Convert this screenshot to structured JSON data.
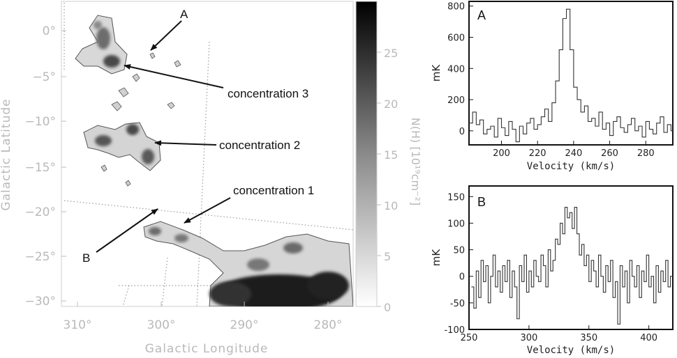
{
  "map": {
    "xlabel": "Galactic Longitude",
    "ylabel": "Galactic Latitude",
    "xticks": [
      "310°",
      "300°",
      "290°",
      "280°"
    ],
    "yticks": [
      "0°",
      "−5°",
      "−10°",
      "−15°",
      "−20°",
      "−25°",
      "−30°"
    ],
    "colorbar_label": "N(H) [10¹⁹cm⁻²]",
    "colorbar_ticks": [
      "0",
      "5",
      "10",
      "15",
      "20",
      "25"
    ],
    "colorbar_range": [
      0,
      30
    ],
    "annotations": {
      "a": "A",
      "b": "B",
      "c1": "concentration 1",
      "c2": "concentration 2",
      "c3": "concentration 3"
    }
  },
  "chart_data": [
    {
      "type": "line",
      "panel": "A",
      "xlabel": "Velocity (km/s)",
      "ylabel": "mK",
      "xlim": [
        182,
        295
      ],
      "ylim": [
        -90,
        830
      ],
      "xticks": [
        200,
        220,
        240,
        260,
        280
      ],
      "yticks": [
        0,
        200,
        400,
        600,
        800
      ],
      "series": [
        {
          "x": [
            182,
            184,
            186,
            188,
            190,
            192,
            194,
            196,
            198,
            200,
            202,
            204,
            206,
            208,
            210,
            212,
            214,
            216,
            218,
            220,
            222,
            224,
            226,
            228,
            230,
            232,
            234,
            236,
            238,
            240,
            242,
            244,
            246,
            248,
            250,
            252,
            254,
            256,
            258,
            260,
            262,
            264,
            266,
            268,
            270,
            272,
            274,
            276,
            278,
            280,
            282,
            284,
            286,
            288,
            290,
            292,
            294
          ],
          "y": [
            50,
            120,
            40,
            70,
            -20,
            10,
            30,
            -40,
            80,
            20,
            -30,
            60,
            10,
            -70,
            30,
            -20,
            50,
            80,
            10,
            40,
            90,
            140,
            60,
            180,
            320,
            520,
            720,
            780,
            520,
            280,
            200,
            120,
            160,
            60,
            80,
            30,
            120,
            10,
            50,
            -30,
            60,
            90,
            20,
            -10,
            40,
            80,
            0,
            30,
            -40,
            60,
            10,
            -20,
            50,
            90,
            -10,
            40,
            0
          ]
        }
      ]
    },
    {
      "type": "line",
      "panel": "B",
      "xlabel": "Velocity (km/s)",
      "ylabel": "mK",
      "xlim": [
        250,
        420
      ],
      "ylim": [
        -100,
        170
      ],
      "xticks": [
        250,
        300,
        350,
        400
      ],
      "yticks": [
        -100,
        -50,
        0,
        50,
        100,
        150
      ],
      "series": [
        {
          "x": [
            252,
            254,
            256,
            258,
            260,
            262,
            264,
            266,
            268,
            270,
            272,
            274,
            276,
            278,
            280,
            282,
            284,
            286,
            288,
            290,
            292,
            294,
            296,
            298,
            300,
            302,
            304,
            306,
            308,
            310,
            312,
            314,
            316,
            318,
            320,
            322,
            324,
            326,
            328,
            330,
            332,
            334,
            336,
            338,
            340,
            342,
            344,
            346,
            348,
            350,
            352,
            354,
            356,
            358,
            360,
            362,
            364,
            366,
            368,
            370,
            372,
            374,
            376,
            378,
            380,
            382,
            384,
            386,
            388,
            390,
            392,
            394,
            396,
            398,
            400,
            402,
            404,
            406,
            408,
            410,
            412,
            414,
            416,
            418
          ],
          "y": [
            -20,
            -60,
            10,
            -40,
            30,
            -10,
            20,
            -50,
            0,
            40,
            -20,
            10,
            -30,
            20,
            -10,
            30,
            -40,
            10,
            -20,
            -80,
            20,
            -10,
            40,
            -30,
            10,
            -20,
            30,
            0,
            -10,
            40,
            20,
            -20,
            50,
            10,
            30,
            70,
            60,
            100,
            80,
            130,
            110,
            120,
            90,
            130,
            80,
            40,
            60,
            20,
            40,
            -10,
            30,
            10,
            -20,
            40,
            0,
            -30,
            20,
            -10,
            30,
            -40,
            -10,
            -90,
            20,
            -20,
            10,
            -50,
            30,
            0,
            -20,
            20,
            -40,
            10,
            -10,
            40,
            -20,
            0,
            -50,
            20,
            -30,
            10,
            -10,
            30,
            -20,
            0
          ]
        }
      ]
    }
  ]
}
